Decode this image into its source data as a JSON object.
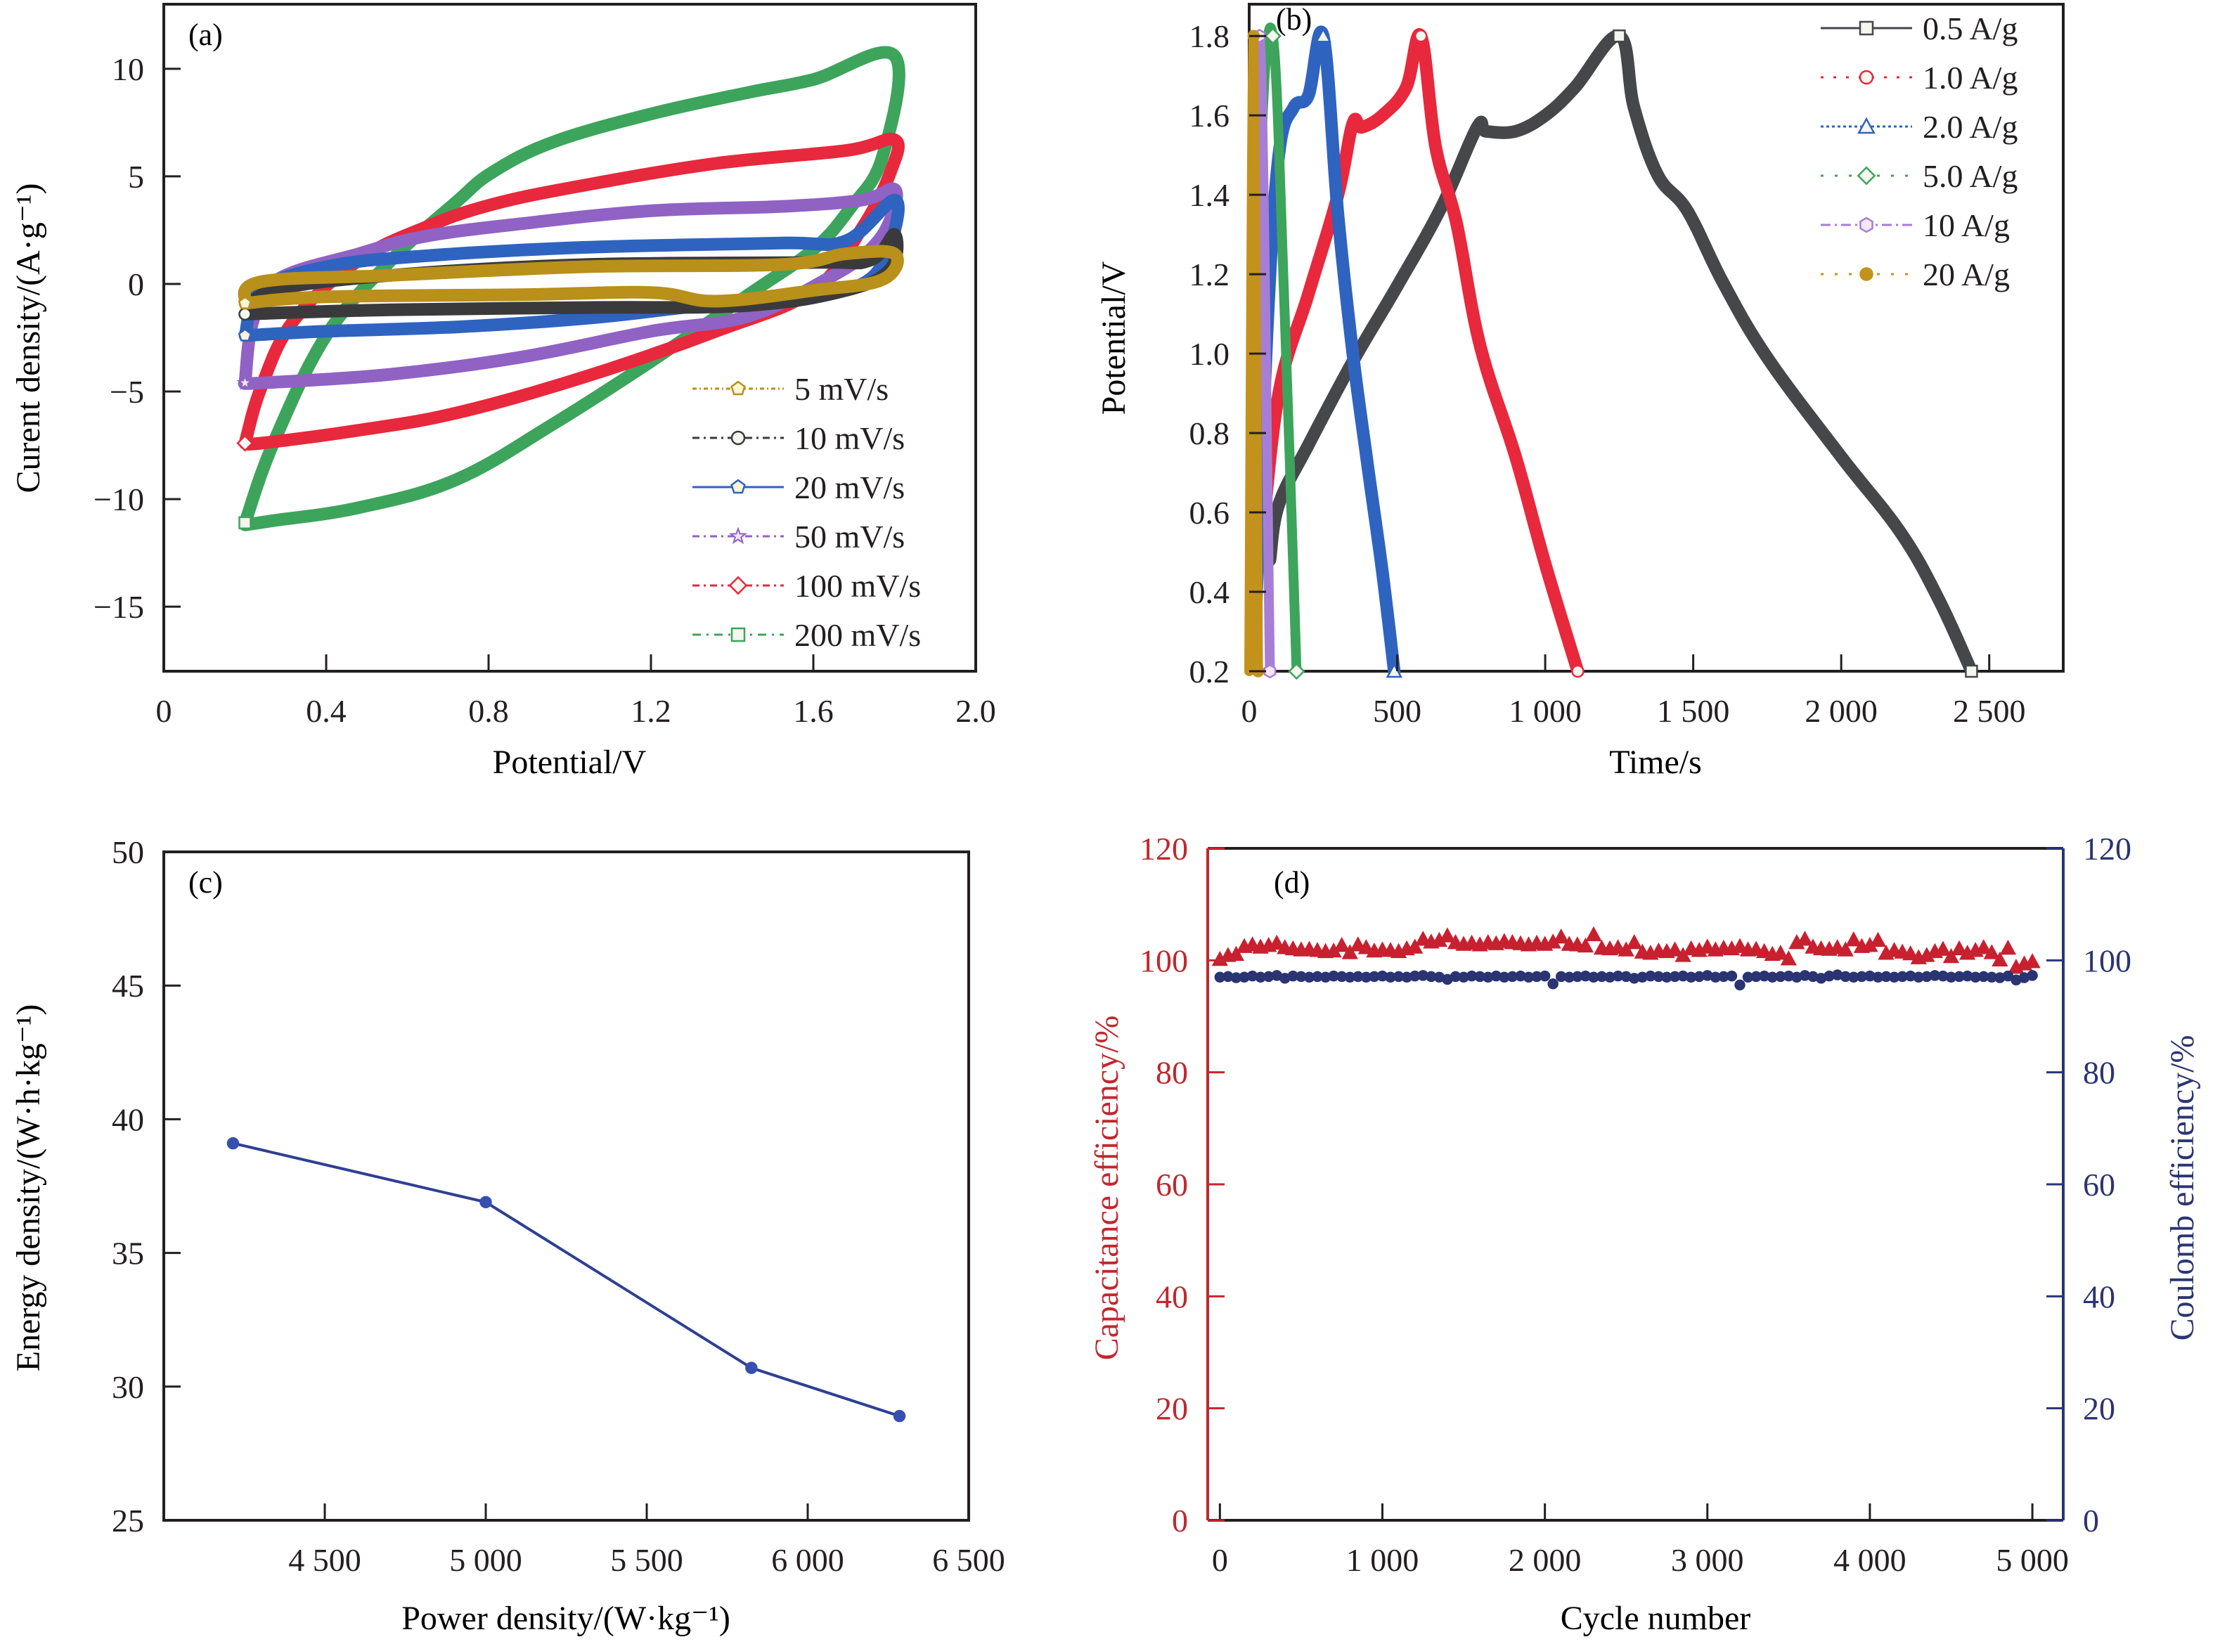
{
  "chart_data": [
    {
      "id": "a",
      "type": "line",
      "panel_label": "(a)",
      "xlabel": "Potential/V",
      "ylabel": "Curent density/(A·g⁻¹)",
      "xlim": [
        0,
        2.0
      ],
      "ylim": [
        -18,
        13
      ],
      "xticks": [
        0,
        0.4,
        0.8,
        1.2,
        1.6,
        2.0
      ],
      "xtick_labels": [
        "0",
        "0.4",
        "0.8",
        "1.2",
        "1.6",
        "2.0"
      ],
      "yticks": [
        10,
        5,
        0,
        -5,
        -10,
        -15
      ],
      "ytick_labels": [
        "10",
        "5",
        "0",
        "−5",
        "−10",
        "−15"
      ],
      "legend_position": "bottom-right",
      "series": [
        {
          "name": "5 mV/s",
          "color": "#b8901a",
          "marker": "pentagon",
          "x": [
            0.2,
            0.24,
            0.56,
            1.04,
            1.52,
            1.68,
            1.8,
            1.77,
            1.6,
            1.36,
            1.2,
            0.88,
            0.4,
            0.2
          ],
          "y": [
            -0.9,
            0.1,
            0.4,
            0.8,
            0.9,
            1.4,
            1.4,
            0.2,
            -0.3,
            -0.8,
            -0.4,
            -0.5,
            -0.6,
            -0.9
          ]
        },
        {
          "name": "10 mV/s",
          "color": "#3a3a3c",
          "marker": "circle",
          "x": [
            0.2,
            0.27,
            0.56,
            1.04,
            1.6,
            1.74,
            1.8,
            1.79,
            1.68,
            1.44,
            1.04,
            0.56,
            0.2
          ],
          "y": [
            -1.4,
            -0.3,
            0.4,
            0.9,
            1.0,
            1.1,
            2.3,
            0.7,
            -0.3,
            -1.0,
            -1.1,
            -1.2,
            -1.4
          ]
        },
        {
          "name": "20 mV/s",
          "color": "#2f63c0",
          "marker": "pentagon",
          "x": [
            0.2,
            0.24,
            0.4,
            0.64,
            1.04,
            1.52,
            1.68,
            1.8,
            1.79,
            1.72,
            1.52,
            1.28,
            1.04,
            0.72,
            0.4,
            0.2
          ],
          "y": [
            -2.4,
            -0.3,
            0.8,
            1.3,
            1.7,
            1.9,
            2.0,
            3.9,
            1.9,
            0.0,
            -0.6,
            -1.1,
            -1.6,
            -2.0,
            -2.2,
            -2.4
          ]
        },
        {
          "name": "50 mV/s",
          "color": "#9062c4",
          "marker": "star",
          "x": [
            0.2,
            0.22,
            0.28,
            0.48,
            0.64,
            0.88,
            1.2,
            1.52,
            1.72,
            1.8,
            1.79,
            1.74,
            1.64,
            1.44,
            1.2,
            0.88,
            0.56,
            0.24,
            0.2
          ],
          "y": [
            -4.6,
            -1.7,
            0.2,
            1.4,
            2.2,
            2.8,
            3.4,
            3.6,
            3.9,
            4.4,
            3.0,
            1.6,
            0.3,
            -1.5,
            -2.2,
            -3.4,
            -4.2,
            -4.6,
            -4.6
          ]
        },
        {
          "name": "100 mV/s",
          "color": "#e8283c",
          "marker": "diamond",
          "x": [
            0.2,
            0.24,
            0.32,
            0.48,
            0.64,
            0.81,
            1.04,
            1.36,
            1.68,
            1.8,
            1.79,
            1.72,
            1.6,
            1.36,
            1.04,
            0.72,
            0.48,
            0.24,
            0.2
          ],
          "y": [
            -7.4,
            -4.8,
            -1.7,
            1.1,
            2.6,
            3.7,
            4.6,
            5.6,
            6.2,
            6.7,
            5.2,
            2.6,
            -0.3,
            -2.2,
            -4.3,
            -6.0,
            -6.8,
            -7.4,
            -7.4
          ]
        },
        {
          "name": "200 mV/s",
          "color": "#3da45c",
          "marker": "square",
          "x": [
            0.2,
            0.27,
            0.4,
            0.56,
            0.72,
            0.81,
            0.96,
            1.2,
            1.44,
            1.6,
            1.8,
            1.77,
            1.69,
            1.6,
            1.44,
            1.2,
            0.96,
            0.72,
            0.48,
            0.27,
            0.2
          ],
          "y": [
            -11.1,
            -7.4,
            -2.4,
            1.1,
            3.8,
            5.2,
            6.6,
            7.9,
            8.9,
            9.5,
            10.6,
            5.9,
            3.5,
            1.6,
            -0.5,
            -3.6,
            -6.5,
            -9.1,
            -10.4,
            -11.0,
            -11.2
          ]
        }
      ]
    },
    {
      "id": "b",
      "type": "line",
      "panel_label": "(b)",
      "xlabel": "Time/s",
      "ylabel": "Potential/V",
      "xlim": [
        0,
        2750
      ],
      "ylim": [
        0.2,
        1.88
      ],
      "xticks": [
        0,
        500,
        1000,
        1500,
        2000,
        2500
      ],
      "xtick_labels": [
        "0",
        "500",
        "1 000",
        "1 500",
        "2 000",
        "2 500"
      ],
      "yticks": [
        0.2,
        0.4,
        0.6,
        0.8,
        1.0,
        1.2,
        1.4,
        1.6,
        1.8
      ],
      "ytick_labels": [
        "0.2",
        "0.4",
        "0.6",
        "0.8",
        "1.0",
        "1.2",
        "1.4",
        "1.6",
        "1.8"
      ],
      "legend_position": "top-right",
      "series": [
        {
          "name": "0.5 A/g",
          "color": "#45474b",
          "marker": "square",
          "x": [
            70,
            100,
            200,
            350,
            500,
            650,
            770,
            800,
            900,
            1000,
            1100,
            1250,
            1300,
            1380,
            1480,
            1600,
            1750,
            2000,
            2200,
            2330,
            2440
          ],
          "y": [
            0.48,
            0.62,
            0.77,
            0.98,
            1.17,
            1.37,
            1.57,
            1.56,
            1.56,
            1.6,
            1.67,
            1.8,
            1.62,
            1.45,
            1.36,
            1.18,
            0.99,
            0.74,
            0.55,
            0.38,
            0.2
          ]
        },
        {
          "name": "1.0 A/g",
          "color": "#e8283c",
          "marker": "circle",
          "x": [
            40,
            100,
            200,
            300,
            350,
            380,
            450,
            530,
            580,
            630,
            700,
            780,
            900,
            1000,
            1110
          ],
          "y": [
            0.5,
            0.9,
            1.15,
            1.4,
            1.58,
            1.57,
            1.6,
            1.67,
            1.8,
            1.52,
            1.33,
            1.02,
            0.74,
            0.47,
            0.2
          ]
        },
        {
          "name": "2.0 A/g",
          "color": "#2f63c0",
          "marker": "triangle",
          "x": [
            20,
            60,
            100,
            150,
            200,
            250,
            300,
            350,
            400,
            450,
            490
          ],
          "y": [
            0.3,
            1.05,
            1.5,
            1.62,
            1.65,
            1.8,
            1.35,
            1.0,
            0.72,
            0.45,
            0.2
          ]
        },
        {
          "name": "5.0 A/g",
          "color": "#3da45c",
          "marker": "diamond",
          "x": [
            5,
            40,
            80,
            120,
            160
          ],
          "y": [
            0.35,
            1.5,
            1.8,
            1.1,
            0.2
          ]
        },
        {
          "name": "10 A/g",
          "color": "#a77ed6",
          "marker": "hexagon",
          "x": [
            5,
            35,
            70
          ],
          "y": [
            0.3,
            1.8,
            0.2
          ]
        },
        {
          "name": "20 A/g",
          "color": "#c3921c",
          "marker": "filled-circle",
          "x": [
            0,
            15,
            30
          ],
          "y": [
            0.2,
            1.8,
            0.2
          ]
        }
      ]
    },
    {
      "id": "c",
      "type": "line",
      "panel_label": "(c)",
      "xlabel": "Power density/(W·kg⁻¹)",
      "ylabel": "Energy density/(W·h·kg⁻¹)",
      "xlim": [
        4000,
        6500
      ],
      "ylim": [
        25,
        50
      ],
      "xticks": [
        4500,
        5000,
        5500,
        6000,
        6500
      ],
      "xtick_labels": [
        "4 500",
        "5 000",
        "5 500",
        "6 000",
        "6 500"
      ],
      "yticks": [
        25,
        30,
        35,
        40,
        45,
        50
      ],
      "ytick_labels": [
        "25",
        "30",
        "35",
        "40",
        "45",
        "50"
      ],
      "series": [
        {
          "name": "Energy density",
          "color": "#2e3f94",
          "marker": "filled-circle",
          "x": [
            4215,
            5000,
            5825,
            6285
          ],
          "y": [
            39.1,
            36.9,
            30.7,
            28.9
          ]
        }
      ]
    },
    {
      "id": "d",
      "type": "scatter",
      "panel_label": "(d)",
      "xlabel": "Cycle number",
      "ylabel": "Capacitance efficiency/%",
      "ylabel_right": "Coulomb efficiency/%",
      "xlim": [
        -75,
        5190
      ],
      "ylim": [
        0,
        120
      ],
      "ylim_right": [
        0,
        120
      ],
      "xticks": [
        0,
        1000,
        2000,
        3000,
        4000,
        5000
      ],
      "xtick_labels": [
        "0",
        "1 000",
        "2 000",
        "3 000",
        "4 000",
        "5 000"
      ],
      "yticks": [
        0,
        20,
        40,
        60,
        80,
        100,
        120
      ],
      "ytick_labels": [
        "0",
        "20",
        "40",
        "60",
        "80",
        "100",
        "120"
      ],
      "left_axis_color": "#c1272d",
      "right_axis_color": "#2b3472",
      "series": [
        {
          "name": "Capacitance efficiency",
          "axis": "left",
          "color": "#c8202f",
          "marker": "triangle",
          "x_start": 0,
          "x_step": 50,
          "y": [
            100.2,
            100.9,
            101.1,
            102.5,
            102.8,
            102.4,
            102.7,
            103.1,
            102.3,
            102.1,
            101.9,
            102.0,
            101.8,
            101.6,
            101.7,
            102.7,
            101.4,
            102.8,
            102.3,
            101.7,
            101.9,
            101.8,
            101.6,
            102.1,
            102.4,
            103.8,
            103.3,
            103.6,
            104.4,
            103.2,
            102.9,
            103.1,
            102.8,
            103.2,
            103.0,
            103.4,
            103.2,
            103.0,
            102.8,
            103.1,
            102.9,
            103.3,
            104.2,
            102.9,
            102.8,
            102.6,
            104.6,
            102.2,
            102.1,
            102.3,
            101.9,
            103.2,
            101.5,
            101.3,
            101.7,
            101.6,
            101.9,
            100.9,
            102.1,
            101.8,
            102.4,
            101.9,
            102.2,
            102.1,
            102.5,
            101.9,
            102.0,
            101.6,
            101.1,
            101.3,
            100.3,
            103.2,
            103.8,
            102.4,
            102.1,
            102.0,
            102.3,
            101.9,
            103.7,
            102.5,
            102.7,
            103.6,
            101.3,
            101.8,
            101.5,
            101.2,
            100.5,
            100.9,
            101.6,
            102.0,
            100.7,
            102.1,
            101.3,
            101.8,
            102.3,
            101.4,
            100.1,
            102.2,
            98.8,
            99.4,
            99.8
          ]
        },
        {
          "name": "Coulomb efficiency",
          "axis": "right",
          "color": "#2b3472",
          "marker": "filled-circle",
          "x_start": 0,
          "x_step": 50,
          "y": [
            97.0,
            97.1,
            96.9,
            97.0,
            97.2,
            97.0,
            97.1,
            97.3,
            96.8,
            97.2,
            97.1,
            97.0,
            97.1,
            97.0,
            97.2,
            97.1,
            97.0,
            97.1,
            97.0,
            97.1,
            97.2,
            97.0,
            97.1,
            97.0,
            97.2,
            97.3,
            97.1,
            97.0,
            96.6,
            97.1,
            97.0,
            97.2,
            97.1,
            97.0,
            97.2,
            97.0,
            97.1,
            97.2,
            97.0,
            97.1,
            97.2,
            95.8,
            97.1,
            97.0,
            97.1,
            97.2,
            97.0,
            97.1,
            97.0,
            97.2,
            97.1,
            96.8,
            97.0,
            97.2,
            97.1,
            97.0,
            97.1,
            97.2,
            97.0,
            97.1,
            97.3,
            97.0,
            97.1,
            97.2,
            95.6,
            97.0,
            97.1,
            97.2,
            97.0,
            97.1,
            97.2,
            97.0,
            97.3,
            97.1,
            96.8,
            97.2,
            97.4,
            97.1,
            97.0,
            97.1,
            97.2,
            97.0,
            97.1,
            97.0,
            97.1,
            97.2,
            97.0,
            97.1,
            97.3,
            97.2,
            97.0,
            97.1,
            97.2,
            97.0,
            97.1,
            97.0,
            96.9,
            97.2,
            96.5,
            96.9,
            97.3
          ]
        }
      ]
    }
  ]
}
